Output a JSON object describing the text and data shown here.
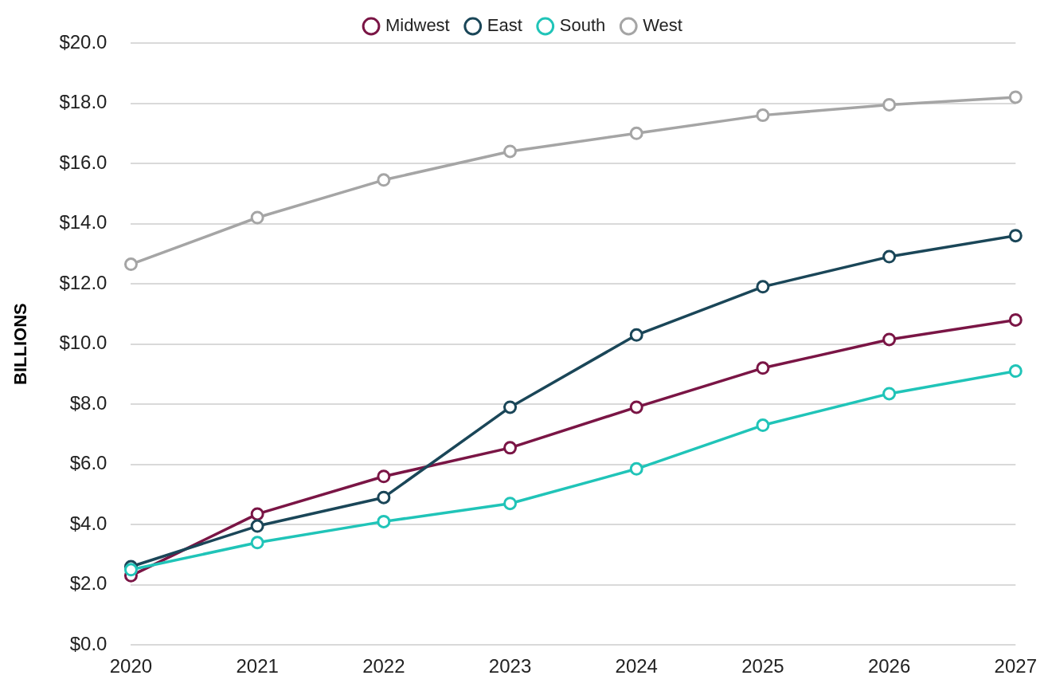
{
  "chart_data": {
    "type": "line",
    "ylabel": "BILLIONS",
    "categories": [
      "2020",
      "2021",
      "2022",
      "2023",
      "2024",
      "2025",
      "2026",
      "2027"
    ],
    "series": [
      {
        "name": "Midwest",
        "color": "#7a1545",
        "values": [
          2.3,
          4.35,
          5.6,
          6.55,
          7.9,
          9.2,
          10.15,
          10.8
        ]
      },
      {
        "name": "East",
        "color": "#1a4658",
        "values": [
          2.6,
          3.95,
          4.9,
          7.9,
          10.3,
          11.9,
          12.9,
          13.6
        ]
      },
      {
        "name": "South",
        "color": "#20c4b8",
        "values": [
          2.5,
          3.4,
          4.1,
          4.7,
          5.85,
          7.3,
          8.35,
          9.1
        ]
      },
      {
        "name": "West",
        "color": "#a5a5a5",
        "values": [
          12.65,
          14.2,
          15.45,
          16.4,
          17.0,
          17.6,
          17.95,
          18.2
        ]
      }
    ],
    "ylim": [
      0,
      20
    ],
    "yticks": [
      {
        "value": 0,
        "label": "$0.0"
      },
      {
        "value": 2,
        "label": "$2.0"
      },
      {
        "value": 4,
        "label": "$4.0"
      },
      {
        "value": 6,
        "label": "$6.0"
      },
      {
        "value": 8,
        "label": "$8.0"
      },
      {
        "value": 10,
        "label": "$10.0"
      },
      {
        "value": 12,
        "label": "$12.0"
      },
      {
        "value": 14,
        "label": "$14.0"
      },
      {
        "value": 16,
        "label": "$16.0"
      },
      {
        "value": 18,
        "label": "$18.0"
      },
      {
        "value": 20,
        "label": "$20.0"
      }
    ],
    "grid": "y",
    "legend": "top",
    "marker": "circle",
    "line_style": "solid"
  }
}
